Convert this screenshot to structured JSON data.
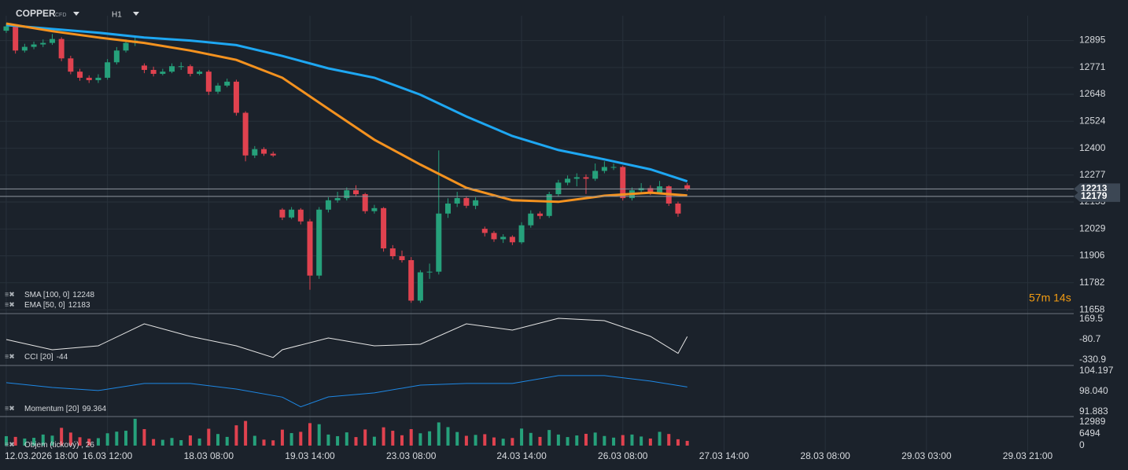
{
  "header": {
    "symbol": "COPPER",
    "instrument": "CFD",
    "timeframe": "H1",
    "countdown": "57m 14s"
  },
  "chart_data": [
    {
      "type": "candlestick",
      "up_color": "#26a17b",
      "down_color": "#e0424f",
      "xlim": [
        -0.68,
        116
      ],
      "xticks": [
        {
          "value": 0,
          "label": "12.03.2026  18:00"
        },
        {
          "value": 11,
          "label": "16.03  12:00"
        },
        {
          "value": 22,
          "label": "18.03  08:00"
        },
        {
          "value": 33,
          "label": "19.03  14:00"
        },
        {
          "value": 44,
          "label": "23.03  08:00"
        },
        {
          "value": 56,
          "label": "24.03  14:00"
        },
        {
          "value": 67,
          "label": "26.03  08:00"
        },
        {
          "value": 78,
          "label": "27.03  14:00"
        },
        {
          "value": 89,
          "label": "28.03  08:00"
        },
        {
          "value": 100,
          "label": "29.03  03:00"
        },
        {
          "value": 111,
          "label": "29.03  21:00"
        }
      ],
      "ylim": [
        11644,
        13009
      ],
      "yticks": [
        12895,
        12771,
        12648,
        12524,
        12400,
        12277,
        12153,
        12029,
        11906,
        11782,
        11658
      ],
      "grid": true,
      "price_lines": [
        12213,
        12179
      ],
      "ohlc": [
        [
          12940,
          12975,
          12930,
          12960
        ],
        [
          12960,
          12970,
          12835,
          12849
        ],
        [
          12849,
          12880,
          12840,
          12866
        ],
        [
          12866,
          12890,
          12855,
          12877
        ],
        [
          12877,
          12900,
          12865,
          12884
        ],
        [
          12884,
          12925,
          12875,
          12902
        ],
        [
          12902,
          12910,
          12800,
          12813
        ],
        [
          12813,
          12825,
          12740,
          12752
        ],
        [
          12752,
          12765,
          12710,
          12724
        ],
        [
          12724,
          12735,
          12700,
          12713
        ],
        [
          12713,
          12740,
          12700,
          12724
        ],
        [
          12724,
          12810,
          12715,
          12795
        ],
        [
          12795,
          12865,
          12785,
          12849
        ],
        [
          12849,
          12900,
          12840,
          12884
        ],
        [
          12884,
          12915,
          12870,
          12895
        ],
        [
          12780,
          12790,
          12745,
          12760
        ],
        [
          12760,
          12775,
          12730,
          12742
        ],
        [
          12742,
          12765,
          12735,
          12752
        ],
        [
          12752,
          12790,
          12745,
          12777
        ],
        [
          12777,
          12795,
          12760,
          12777
        ],
        [
          12777,
          12785,
          12730,
          12742
        ],
        [
          12742,
          12760,
          12735,
          12752
        ],
        [
          12752,
          12760,
          12645,
          12660
        ],
        [
          12660,
          12700,
          12650,
          12688
        ],
        [
          12688,
          12720,
          12680,
          12706
        ],
        [
          12706,
          12715,
          12550,
          12563
        ],
        [
          12563,
          12570,
          12340,
          12367
        ],
        [
          12367,
          12410,
          12355,
          12396
        ],
        [
          12396,
          12405,
          12365,
          12375
        ],
        [
          12375,
          12385,
          12360,
          12367
        ],
        [
          12118,
          12125,
          12070,
          12082
        ],
        [
          12082,
          12130,
          12075,
          12118
        ],
        [
          12118,
          12125,
          12050,
          12064
        ],
        [
          12064,
          12075,
          11750,
          11815
        ],
        [
          11815,
          12130,
          11800,
          12118
        ],
        [
          12118,
          12175,
          12105,
          12161
        ],
        [
          12161,
          12200,
          12150,
          12171
        ],
        [
          12171,
          12220,
          12160,
          12207
        ],
        [
          12207,
          12230,
          12180,
          12189
        ],
        [
          12189,
          12195,
          12100,
          12111
        ],
        [
          12111,
          12140,
          12100,
          12125
        ],
        [
          12125,
          12130,
          11925,
          11940
        ],
        [
          11940,
          11955,
          11890,
          11904
        ],
        [
          11904,
          11930,
          11875,
          11886
        ],
        [
          11886,
          11900,
          11690,
          11700
        ],
        [
          11700,
          11840,
          11690,
          11830
        ],
        [
          11830,
          11870,
          11800,
          11833
        ],
        [
          11833,
          12390,
          11820,
          12100
        ],
        [
          12100,
          12170,
          12080,
          12146
        ],
        [
          12146,
          12200,
          12130,
          12171
        ],
        [
          12171,
          12180,
          12125,
          12136
        ],
        [
          12136,
          12175,
          12120,
          12161
        ],
        [
          12030,
          12040,
          11995,
          12011
        ],
        [
          12011,
          12020,
          11970,
          11982
        ],
        [
          11982,
          12005,
          11965,
          11993
        ],
        [
          11993,
          12000,
          11955,
          11968
        ],
        [
          11968,
          12060,
          11960,
          12046
        ],
        [
          12046,
          12115,
          12035,
          12100
        ],
        [
          12100,
          12110,
          12075,
          12089
        ],
        [
          12089,
          12200,
          12080,
          12189
        ],
        [
          12189,
          12255,
          12180,
          12242
        ],
        [
          12242,
          12275,
          12230,
          12260
        ],
        [
          12260,
          12285,
          12225,
          12267
        ],
        [
          12267,
          12280,
          12190,
          12260
        ],
        [
          12260,
          12330,
          12250,
          12296
        ],
        [
          12296,
          12340,
          12285,
          12314
        ],
        [
          12314,
          12330,
          12300,
          12314
        ],
        [
          12314,
          12320,
          12160,
          12171
        ],
        [
          12171,
          12220,
          12160,
          12207
        ],
        [
          12207,
          12240,
          12195,
          12217
        ],
        [
          12217,
          12230,
          12185,
          12196
        ],
        [
          12196,
          12250,
          12190,
          12225
        ],
        [
          12225,
          12230,
          12135,
          12146
        ],
        [
          12146,
          12155,
          12085,
          12100
        ],
        [
          12230,
          12240,
          12205,
          12213
        ]
      ],
      "series": [
        {
          "name": "SMA [100,  0]",
          "color": "#1ea7f2",
          "x": [
            0,
            5,
            10,
            15,
            20,
            25,
            30,
            35,
            40,
            45,
            50,
            55,
            60,
            65,
            70,
            74
          ],
          "values": [
            12966,
            12948,
            12931,
            12909,
            12895,
            12874,
            12824,
            12767,
            12724,
            12646,
            12546,
            12456,
            12392,
            12349,
            12303,
            12248
          ]
        },
        {
          "name": "EMA [50,  0]",
          "color": "#f4921f",
          "x": [
            0,
            5,
            10,
            15,
            20,
            25,
            30,
            35,
            40,
            45,
            50,
            55,
            60,
            65,
            70,
            74
          ],
          "values": [
            12973,
            12938,
            12909,
            12884,
            12849,
            12806,
            12724,
            12581,
            12439,
            12325,
            12218,
            12161,
            12154,
            12182,
            12196,
            12183
          ]
        }
      ]
    },
    {
      "type": "line",
      "name": "CCI [20]",
      "color": "#e6e6e6",
      "x": [
        0,
        5,
        10,
        15,
        20,
        25,
        29,
        30,
        35,
        40,
        45,
        50,
        55,
        60,
        65,
        70,
        73,
        74
      ],
      "values": [
        -80.6,
        -205.7,
        -157.6,
        111.8,
        -42.1,
        -157.6,
        -300,
        -205.7,
        -61.4,
        -157.6,
        -138.3,
        111.8,
        34.8,
        179.1,
        150.3,
        -42.1,
        -250,
        -44.0
      ],
      "ylim": [
        -398,
        227
      ],
      "yticks": [
        169.5,
        -80.7,
        -330.9
      ]
    },
    {
      "type": "line",
      "name": "Momentum [20]",
      "color": "#1e88e5",
      "x": [
        0,
        5,
        10,
        15,
        20,
        25,
        30,
        32,
        35,
        40,
        45,
        50,
        55,
        60,
        65,
        70,
        74
      ],
      "values": [
        100.65,
        99.22,
        98.28,
        100.41,
        100.41,
        98.75,
        96.3,
        93.4,
        96.38,
        97.57,
        99.93,
        100.41,
        100.41,
        102.78,
        102.78,
        101.12,
        99.364
      ],
      "ylim": [
        90.46,
        105.6
      ],
      "yticks": [
        104.197,
        {
          "value": 98.04,
          "label": "98.040"
        },
        91.883
      ]
    },
    {
      "type": "bar",
      "name": "Objem (tickový) , 26",
      "ylim": [
        -3500,
        15600
      ],
      "yticks": [
        12989,
        6494,
        0
      ],
      "values": [
        5200,
        4800,
        3900,
        4300,
        6100,
        5500,
        9800,
        7200,
        4600,
        3800,
        4100,
        6800,
        7700,
        8200,
        14800,
        9100,
        3600,
        3200,
        4200,
        3000,
        5600,
        3900,
        9300,
        6400,
        4800,
        11200,
        13600,
        5400,
        3300,
        2900,
        8800,
        6900,
        7600,
        12400,
        11800,
        6100,
        5200,
        7300,
        4700,
        8900,
        4900,
        10100,
        8200,
        5700,
        9100,
        6800,
        7900,
        12800,
        10200,
        7500,
        5400,
        5900,
        6300,
        4500,
        3800,
        4200,
        9400,
        7000,
        4800,
        8600,
        6100,
        4700,
        5600,
        6500,
        7200,
        5300,
        4400,
        5800,
        6100,
        5000,
        3900,
        7600,
        6400,
        3500,
        2600
      ]
    }
  ]
}
